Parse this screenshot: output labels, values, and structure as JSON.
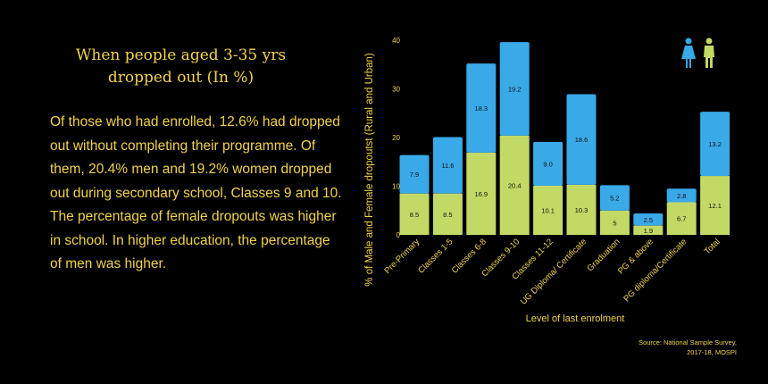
{
  "text": {
    "title_line1": "When people aged 3-35 yrs",
    "title_line2": "dropped out (In %)",
    "paragraph": "Of those who had enrolled, 12.6% had dropped out without completing their programme. Of them, 20.4% men and 19.2% women dropped out during secondary school, Classes 9 and 10. The percentage of female dropouts was higher in school. In higher education, the percentage of men was higher.",
    "source_line1": "Source: National Sample Survey,",
    "source_line2": "2017-18, MOSPI"
  },
  "colors": {
    "male": "#c3d966",
    "female": "#39a9e8",
    "text": "#f2d24b",
    "background": "#000000"
  },
  "legend": {
    "female_icon": "female-person-icon",
    "male_icon": "male-person-icon"
  },
  "chart_data": {
    "type": "bar",
    "stacked": true,
    "title": "When people aged 3-35 yrs dropped out (In %)",
    "xlabel": "Level of last enrolment",
    "ylabel": "% of Male and Female dropoutst (Rural and Urban)",
    "ylim": [
      0,
      40
    ],
    "yticks": [
      0,
      10,
      20,
      30,
      40
    ],
    "categories": [
      "Pre-Primary",
      "Classes 1-5",
      "Classes 6-8",
      "Classes 9-10",
      "Classes 11-12",
      "UG Diploma/ Certificate",
      "Graduation",
      "PG & above",
      "PG diploma/Certificate",
      "Total"
    ],
    "series": [
      {
        "values": [
          8.5,
          8.5,
          16.9,
          20.4,
          10.1,
          10.3,
          5,
          1.9,
          6.7,
          12.1
        ],
        "color": "#c3d966"
      },
      {
        "values": [
          7.9,
          11.6,
          18.3,
          19.2,
          9.0,
          18.6,
          5.2,
          2.5,
          2.8,
          13.2
        ],
        "color": "#39a9e8"
      }
    ],
    "data_labels": {
      "bottom": [
        "8.5",
        "8.5",
        "16.9",
        "20.4",
        "10.1",
        "10.3",
        "5",
        "1.9",
        "6.7",
        "12.1"
      ],
      "top": [
        "7.9",
        "11.6",
        "18.3",
        "19.2",
        "9.0",
        "18.6",
        "5.2",
        "2.5",
        "2.8",
        "13.2"
      ]
    },
    "grid": false,
    "legend_position": "top-right"
  }
}
